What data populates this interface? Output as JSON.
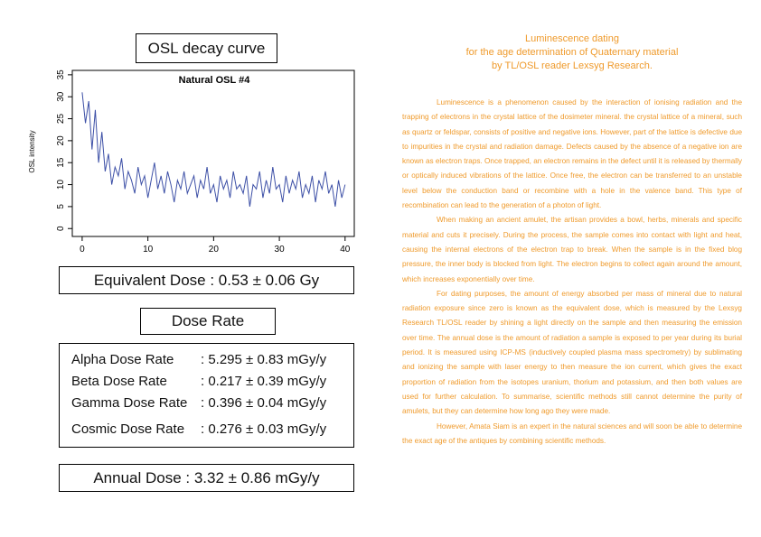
{
  "left": {
    "osl_title": "OSL decay curve",
    "equivalent_dose": "Equivalent Dose : 0.53 ± 0.06 Gy",
    "dose_rate_title": "Dose Rate",
    "dose_rows": [
      {
        "label": "Alpha Dose Rate",
        "value": ": 5.295 ± 0.83 mGy/y"
      },
      {
        "label": "Beta Dose Rate",
        "value": ": 0.217 ± 0.39 mGy/y"
      },
      {
        "label": "Gamma Dose Rate",
        "value": ": 0.396 ± 0.04 mGy/y"
      },
      {
        "label": "Cosmic Dose Rate",
        "value": ": 0.276 ± 0.03 mGy/y"
      }
    ],
    "annual_dose": "Annual Dose : 3.32 ± 0.86 mGy/y"
  },
  "chart_data": {
    "type": "line",
    "title": "Natural OSL #4",
    "ylabel": "OSL intensity",
    "color": "#3c4fa6",
    "x": [
      0,
      0.5,
      1,
      1.5,
      2,
      2.5,
      3,
      3.5,
      4,
      4.5,
      5,
      5.5,
      6,
      6.5,
      7,
      7.5,
      8,
      8.5,
      9,
      9.5,
      10,
      10.5,
      11,
      11.5,
      12,
      12.5,
      13,
      13.5,
      14,
      14.5,
      15,
      15.5,
      16,
      16.5,
      17,
      17.5,
      18,
      18.5,
      19,
      19.5,
      20,
      20.5,
      21,
      21.5,
      22,
      22.5,
      23,
      23.5,
      24,
      24.5,
      25,
      25.5,
      26,
      26.5,
      27,
      27.5,
      28,
      28.5,
      29,
      29.5,
      30,
      30.5,
      31,
      31.5,
      32,
      32.5,
      33,
      33.5,
      34,
      34.5,
      35,
      35.5,
      36,
      36.5,
      37,
      37.5,
      38,
      38.5,
      39,
      39.5,
      40
    ],
    "values": [
      31,
      24,
      29,
      18,
      27,
      15,
      22,
      13,
      17,
      10,
      14,
      12,
      16,
      9,
      13,
      11,
      8,
      14,
      10,
      12,
      7,
      11,
      15,
      9,
      12,
      8,
      13,
      10,
      6,
      11,
      9,
      13,
      8,
      10,
      12,
      7,
      11,
      9,
      14,
      8,
      10,
      6,
      12,
      9,
      11,
      7,
      13,
      9,
      10,
      8,
      12,
      5,
      10,
      9,
      13,
      7,
      11,
      8,
      14,
      9,
      10,
      6,
      12,
      8,
      11,
      9,
      13,
      7,
      10,
      8,
      12,
      6,
      11,
      9,
      13,
      8,
      10,
      5,
      11,
      7,
      10
    ],
    "xlim": [
      -1.5,
      41.4
    ],
    "ylim": [
      -1.8,
      36
    ],
    "xticks": [
      0,
      10,
      20,
      30,
      40
    ],
    "yticks": [
      0,
      5,
      10,
      15,
      20,
      25,
      30,
      35
    ]
  },
  "article": {
    "title": [
      "Luminescence dating",
      "for the age determination of Quaternary material",
      "by TL/OSL reader Lexsyg Research."
    ],
    "paragraphs": [
      "Luminescence is a phenomenon caused by the interaction of ionising radiation and the trapping of electrons in the crystal lattice of the dosimeter mineral. the crystal lattice of a mineral, such as quartz or feldspar, consists of positive and negative ions. However, part of the lattice is defective due to impurities in the crystal and radiation damage. Defects caused by the absence of a negative ion are known as electron traps. Once trapped, an electron remains in the defect until it is released by thermally or optically induced vibrations of the lattice. Once free, the electron can be transferred to an unstable level below the conduction band or recombine with a hole in the valence band. This type of recombination can lead to the generation of a photon of light.",
      "When making an ancient amulet, the artisan provides a bowl, herbs, minerals and specific material and cuts it precisely. During the process, the sample comes into contact with light and heat, causing the internal electrons of the electron trap to break. When the sample is in the fixed blog pressure, the inner body is blocked from light. The electron begins to collect again around the amount, which increases exponentially over time.",
      "For dating purposes, the amount of energy absorbed per mass of mineral due to natural radiation exposure since zero is known as the equivalent dose, which is measured by the Lexsyg Research TL/OSL reader by shining a light directly on the sample and then measuring the emission over time. The annual dose is the amount of radiation a sample is exposed to per year during its burial period. It is measured using ICP-MS (inductively coupled plasma mass spectrometry) by sublimating and ionizing the sample with laser energy to then measure the ion current, which gives the exact proportion of radiation from the isotopes uranium, thorium and potassium, and then both values are used for further calculation. To summarise, scientific methods still cannot determine the purity of amulets, but they can determine how long ago they were made.",
      "However, Amata Siam is an expert in the natural sciences and will soon be able to determine the exact age of the antiques by combining scientific methods."
    ]
  }
}
